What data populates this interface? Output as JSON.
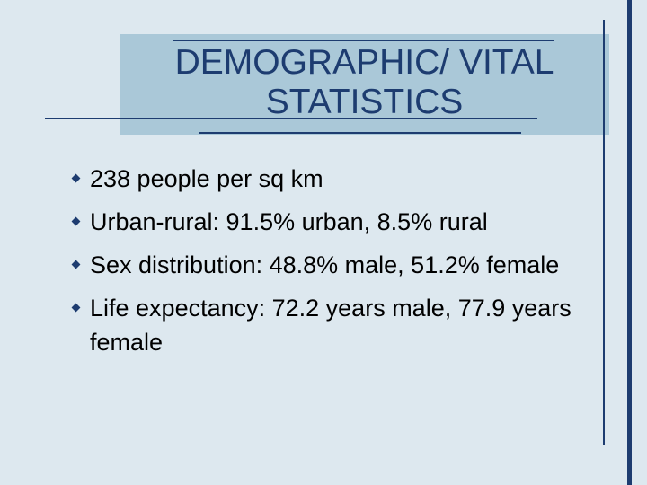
{
  "title": {
    "lines": [
      "DEMOGRAPHIC/ VITAL",
      "STATISTICS"
    ]
  },
  "bullets": [
    "238 people per sq km",
    "Urban-rural: 91.5% urban, 8.5% rural",
    "Sex distribution: 48.8% male, 51.2% female",
    "Life expectancy: 72.2 years male, 77.9 years female"
  ]
}
